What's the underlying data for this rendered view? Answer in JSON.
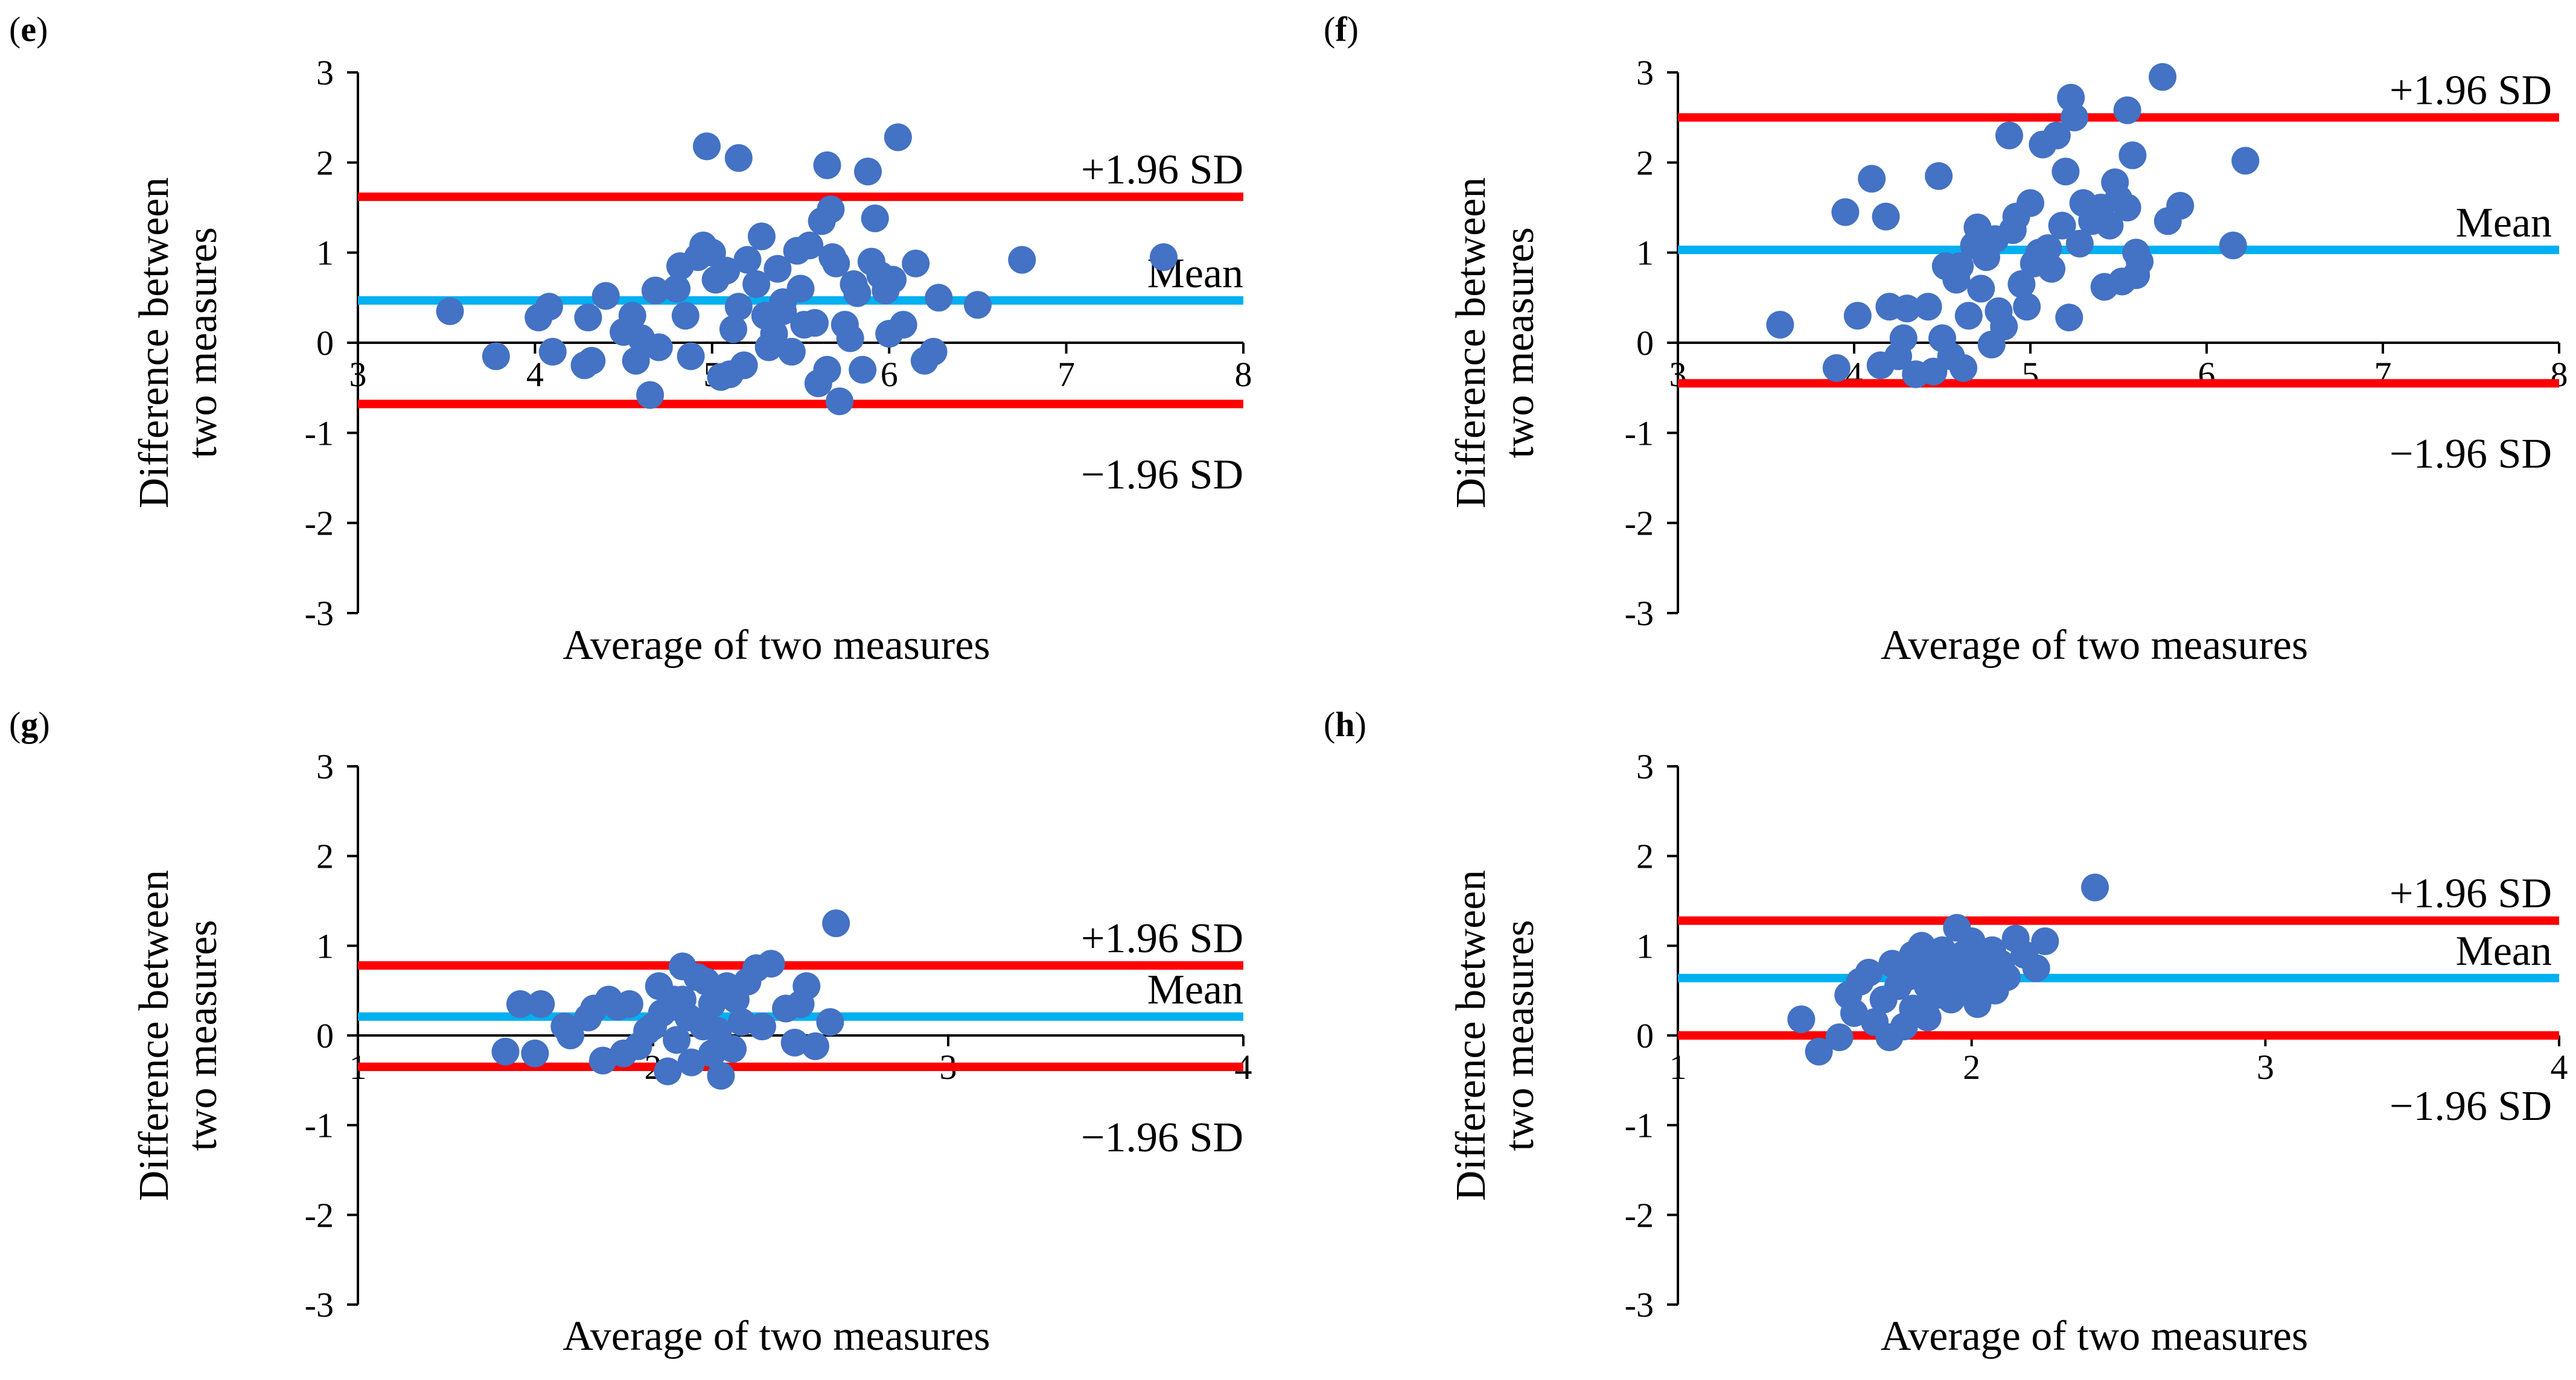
{
  "colors": {
    "point": "#4472C4",
    "mean": "#00B0F0",
    "limit": "#FF0000",
    "axis": "#000000"
  },
  "chart_data": [
    {
      "type": "scatter",
      "panel": "e",
      "title": "",
      "xlabel": "Average of two measures",
      "ylabel_lines": [
        "Difference between",
        "two measures"
      ],
      "xlim": [
        3,
        8
      ],
      "ylim": [
        -3,
        3
      ],
      "xticks": [
        "3",
        "4",
        "5",
        "6",
        "7",
        "8"
      ],
      "yticks": [
        "-3",
        "-2",
        "-1",
        "0",
        "1",
        "2",
        "3"
      ],
      "lines": {
        "upper": 1.62,
        "mean": 0.47,
        "lower": -0.68
      },
      "labels": {
        "upper": "+1.96 SD",
        "mean": "Mean",
        "lower": "−1.96 SD"
      },
      "points": [
        [
          3.52,
          0.35
        ],
        [
          3.78,
          -0.15
        ],
        [
          4.02,
          0.28
        ],
        [
          4.08,
          0.4
        ],
        [
          4.1,
          -0.1
        ],
        [
          4.3,
          0.28
        ],
        [
          4.28,
          -0.25
        ],
        [
          4.32,
          -0.2
        ],
        [
          4.4,
          0.52
        ],
        [
          4.5,
          0.12
        ],
        [
          4.55,
          0.3
        ],
        [
          4.57,
          -0.2
        ],
        [
          4.6,
          0.05
        ],
        [
          4.65,
          -0.58
        ],
        [
          4.7,
          -0.05
        ],
        [
          4.68,
          0.58
        ],
        [
          4.8,
          0.6
        ],
        [
          4.82,
          0.85
        ],
        [
          4.85,
          0.3
        ],
        [
          4.88,
          -0.15
        ],
        [
          4.92,
          0.95
        ],
        [
          4.95,
          1.08
        ],
        [
          4.97,
          2.18
        ],
        [
          5.0,
          1.0
        ],
        [
          5.02,
          0.7
        ],
        [
          5.05,
          -0.38
        ],
        [
          5.08,
          0.8
        ],
        [
          5.1,
          -0.35
        ],
        [
          5.12,
          0.15
        ],
        [
          5.15,
          2.05
        ],
        [
          5.15,
          0.4
        ],
        [
          5.18,
          -0.25
        ],
        [
          5.2,
          0.92
        ],
        [
          5.25,
          0.65
        ],
        [
          5.28,
          1.18
        ],
        [
          5.3,
          0.3
        ],
        [
          5.32,
          -0.05
        ],
        [
          5.35,
          0.1
        ],
        [
          5.37,
          0.82
        ],
        [
          5.4,
          0.35
        ],
        [
          5.4,
          0.45
        ],
        [
          5.45,
          -0.1
        ],
        [
          5.48,
          1.02
        ],
        [
          5.5,
          0.6
        ],
        [
          5.52,
          0.2
        ],
        [
          5.55,
          1.08
        ],
        [
          5.58,
          0.22
        ],
        [
          5.6,
          -0.45
        ],
        [
          5.62,
          1.35
        ],
        [
          5.65,
          -0.3
        ],
        [
          5.67,
          1.48
        ],
        [
          5.68,
          0.95
        ],
        [
          5.65,
          1.97
        ],
        [
          5.7,
          0.88
        ],
        [
          5.72,
          -0.65
        ],
        [
          5.75,
          0.2
        ],
        [
          5.78,
          0.05
        ],
        [
          5.8,
          0.65
        ],
        [
          5.82,
          0.55
        ],
        [
          5.85,
          -0.3
        ],
        [
          5.88,
          1.9
        ],
        [
          5.9,
          0.9
        ],
        [
          5.92,
          1.38
        ],
        [
          5.95,
          0.75
        ],
        [
          5.98,
          0.58
        ],
        [
          6.0,
          0.1
        ],
        [
          6.02,
          0.7
        ],
        [
          6.05,
          2.28
        ],
        [
          6.08,
          0.2
        ],
        [
          6.15,
          0.88
        ],
        [
          6.2,
          -0.2
        ],
        [
          6.25,
          -0.1
        ],
        [
          6.28,
          0.5
        ],
        [
          6.5,
          0.42
        ],
        [
          6.75,
          0.92
        ],
        [
          7.55,
          0.95
        ]
      ]
    },
    {
      "type": "scatter",
      "panel": "f",
      "title": "",
      "xlabel": "Average of two measures",
      "ylabel_lines": [
        "Difference between",
        "two measures"
      ],
      "xlim": [
        3,
        8
      ],
      "ylim": [
        -3,
        3
      ],
      "xticks": [
        "3",
        "4",
        "5",
        "6",
        "7",
        "8"
      ],
      "yticks": [
        "-3",
        "-2",
        "-1",
        "0",
        "1",
        "2",
        "3"
      ],
      "lines": {
        "upper": 2.5,
        "mean": 1.03,
        "lower": -0.45
      },
      "labels": {
        "upper": "+1.96 SD",
        "mean": "Mean",
        "lower": "−1.96 SD"
      },
      "points": [
        [
          3.58,
          0.2
        ],
        [
          3.9,
          -0.28
        ],
        [
          3.95,
          1.45
        ],
        [
          4.02,
          0.3
        ],
        [
          4.1,
          1.82
        ],
        [
          4.15,
          -0.25
        ],
        [
          4.18,
          1.4
        ],
        [
          4.2,
          0.4
        ],
        [
          4.25,
          -0.15
        ],
        [
          4.28,
          0.05
        ],
        [
          4.3,
          0.38
        ],
        [
          4.35,
          -0.35
        ],
        [
          4.42,
          0.4
        ],
        [
          4.45,
          -0.32
        ],
        [
          4.48,
          1.85
        ],
        [
          4.5,
          0.05
        ],
        [
          4.52,
          0.85
        ],
        [
          4.55,
          -0.15
        ],
        [
          4.58,
          0.7
        ],
        [
          4.6,
          0.85
        ],
        [
          4.62,
          -0.28
        ],
        [
          4.65,
          0.3
        ],
        [
          4.68,
          1.08
        ],
        [
          4.7,
          1.28
        ],
        [
          4.72,
          0.6
        ],
        [
          4.75,
          0.95
        ],
        [
          4.78,
          -0.02
        ],
        [
          4.8,
          1.15
        ],
        [
          4.82,
          0.35
        ],
        [
          4.85,
          0.18
        ],
        [
          4.88,
          2.3
        ],
        [
          4.9,
          1.25
        ],
        [
          4.92,
          1.4
        ],
        [
          4.95,
          0.65
        ],
        [
          4.98,
          0.4
        ],
        [
          5.0,
          1.55
        ],
        [
          5.02,
          0.88
        ],
        [
          5.05,
          1.0
        ],
        [
          5.07,
          2.2
        ],
        [
          5.1,
          1.05
        ],
        [
          5.12,
          0.82
        ],
        [
          5.15,
          2.3
        ],
        [
          5.18,
          1.3
        ],
        [
          5.2,
          1.9
        ],
        [
          5.22,
          0.28
        ],
        [
          5.23,
          2.72
        ],
        [
          5.25,
          2.5
        ],
        [
          5.28,
          1.1
        ],
        [
          5.3,
          1.55
        ],
        [
          5.35,
          1.35
        ],
        [
          5.4,
          1.5
        ],
        [
          5.42,
          0.62
        ],
        [
          5.45,
          1.3
        ],
        [
          5.48,
          1.78
        ],
        [
          5.5,
          1.6
        ],
        [
          5.52,
          0.68
        ],
        [
          5.55,
          1.5
        ],
        [
          5.55,
          2.58
        ],
        [
          5.58,
          2.08
        ],
        [
          5.6,
          0.75
        ],
        [
          5.6,
          1.0
        ],
        [
          5.62,
          0.9
        ],
        [
          5.75,
          2.95
        ],
        [
          5.78,
          1.35
        ],
        [
          5.85,
          1.52
        ],
        [
          6.15,
          1.08
        ],
        [
          6.22,
          2.02
        ]
      ]
    },
    {
      "type": "scatter",
      "panel": "g",
      "title": "",
      "xlabel": "Average of two measures",
      "ylabel_lines": [
        "Difference between",
        "two measures"
      ],
      "xlim": [
        1,
        4
      ],
      "ylim": [
        -3,
        3
      ],
      "xticks": [
        "1",
        "2",
        "3",
        "4"
      ],
      "yticks": [
        "-3",
        "-2",
        "-1",
        "0",
        "1",
        "2",
        "3"
      ],
      "lines": {
        "upper": 0.78,
        "mean": 0.21,
        "lower": -0.35
      },
      "labels": {
        "upper": "+1.96 SD",
        "mean": "Mean",
        "lower": "−1.96 SD"
      },
      "points": [
        [
          1.5,
          -0.18
        ],
        [
          1.55,
          0.35
        ],
        [
          1.6,
          -0.2
        ],
        [
          1.62,
          0.35
        ],
        [
          1.7,
          0.1
        ],
        [
          1.72,
          0.0
        ],
        [
          1.78,
          0.2
        ],
        [
          1.8,
          0.3
        ],
        [
          1.83,
          -0.28
        ],
        [
          1.85,
          0.4
        ],
        [
          1.88,
          0.32
        ],
        [
          1.9,
          -0.2
        ],
        [
          1.92,
          0.35
        ],
        [
          1.95,
          -0.12
        ],
        [
          1.98,
          0.05
        ],
        [
          2.0,
          0.1
        ],
        [
          2.02,
          0.55
        ],
        [
          2.03,
          0.25
        ],
        [
          2.05,
          -0.4
        ],
        [
          2.07,
          0.4
        ],
        [
          2.08,
          -0.05
        ],
        [
          2.1,
          0.4
        ],
        [
          2.1,
          0.77
        ],
        [
          2.12,
          0.2
        ],
        [
          2.13,
          -0.3
        ],
        [
          2.15,
          0.65
        ],
        [
          2.17,
          0.1
        ],
        [
          2.18,
          0.6
        ],
        [
          2.2,
          -0.2
        ],
        [
          2.2,
          0.35
        ],
        [
          2.22,
          0.05
        ],
        [
          2.23,
          -0.45
        ],
        [
          2.25,
          0.55
        ],
        [
          2.27,
          -0.15
        ],
        [
          2.28,
          0.4
        ],
        [
          2.3,
          0.15
        ],
        [
          2.32,
          0.6
        ],
        [
          2.35,
          0.75
        ],
        [
          2.37,
          0.1
        ],
        [
          2.4,
          0.8
        ],
        [
          2.45,
          0.3
        ],
        [
          2.48,
          -0.08
        ],
        [
          2.5,
          0.35
        ],
        [
          2.52,
          0.55
        ],
        [
          2.55,
          -0.12
        ],
        [
          2.6,
          0.15
        ],
        [
          2.62,
          1.25
        ]
      ]
    },
    {
      "type": "scatter",
      "panel": "h",
      "title": "",
      "xlabel": "Average of two measures",
      "ylabel_lines": [
        "Difference between",
        "two measures"
      ],
      "xlim": [
        1,
        4
      ],
      "ylim": [
        -3,
        3
      ],
      "xticks": [
        "1",
        "2",
        "3",
        "4"
      ],
      "yticks": [
        "-3",
        "-2",
        "-1",
        "0",
        "1",
        "2",
        "3"
      ],
      "lines": {
        "upper": 1.28,
        "mean": 0.64,
        "lower": 0.0
      },
      "labels": {
        "upper": "+1.96 SD",
        "mean": "Mean",
        "lower": "−1.96 SD"
      },
      "points": [
        [
          1.42,
          0.18
        ],
        [
          1.48,
          -0.18
        ],
        [
          1.55,
          -0.02
        ],
        [
          1.58,
          0.45
        ],
        [
          1.6,
          0.25
        ],
        [
          1.62,
          0.6
        ],
        [
          1.65,
          0.7
        ],
        [
          1.67,
          0.15
        ],
        [
          1.7,
          0.4
        ],
        [
          1.72,
          -0.02
        ],
        [
          1.73,
          0.8
        ],
        [
          1.75,
          0.55
        ],
        [
          1.77,
          0.1
        ],
        [
          1.78,
          0.65
        ],
        [
          1.8,
          0.9
        ],
        [
          1.8,
          0.3
        ],
        [
          1.82,
          0.72
        ],
        [
          1.83,
          1.0
        ],
        [
          1.85,
          0.2
        ],
        [
          1.85,
          0.55
        ],
        [
          1.87,
          0.85
        ],
        [
          1.88,
          0.45
        ],
        [
          1.9,
          0.95
        ],
        [
          1.9,
          0.62
        ],
        [
          1.92,
          0.8
        ],
        [
          1.93,
          0.4
        ],
        [
          1.95,
          1.2
        ],
        [
          1.95,
          0.7
        ],
        [
          1.97,
          0.9
        ],
        [
          1.98,
          0.55
        ],
        [
          2.0,
          1.05
        ],
        [
          2.0,
          0.75
        ],
        [
          2.02,
          0.35
        ],
        [
          2.03,
          0.85
        ],
        [
          2.05,
          0.6
        ],
        [
          2.07,
          0.95
        ],
        [
          2.08,
          0.5
        ],
        [
          2.1,
          0.8
        ],
        [
          2.12,
          0.65
        ],
        [
          2.15,
          1.08
        ],
        [
          2.18,
          0.9
        ],
        [
          2.22,
          0.75
        ],
        [
          2.25,
          1.05
        ],
        [
          2.42,
          1.65
        ]
      ]
    }
  ]
}
